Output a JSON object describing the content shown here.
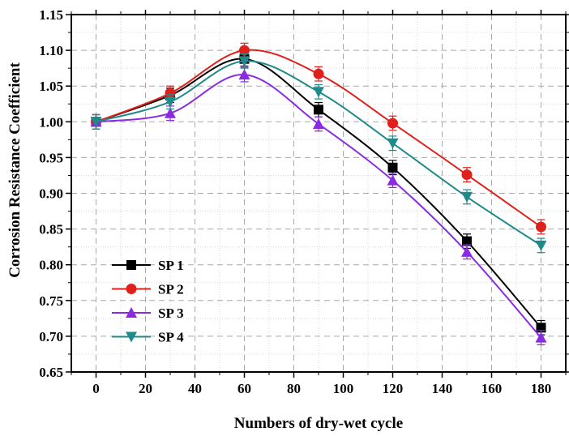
{
  "chart_data": {
    "type": "line",
    "title": "",
    "xlabel": "Numbers of dry-wet cycle",
    "ylabel": "Corrosion Resistance Coefficient",
    "xlim": [
      -10,
      190
    ],
    "ylim": [
      0.65,
      1.15
    ],
    "x": [
      0,
      30,
      60,
      90,
      120,
      150,
      180
    ],
    "x_ticks": [
      0,
      20,
      40,
      60,
      80,
      100,
      120,
      140,
      160,
      180
    ],
    "x_tick_labels": [
      "0",
      "20",
      "40",
      "60",
      "80",
      "100",
      "120",
      "140",
      "160",
      "180"
    ],
    "y_ticks": [
      0.65,
      0.7,
      0.75,
      0.8,
      0.85,
      0.9,
      0.95,
      1.0,
      1.05,
      1.1,
      1.15
    ],
    "y_tick_labels": [
      "0.65",
      "0.70",
      "0.75",
      "0.80",
      "0.85",
      "0.90",
      "0.95",
      "1.00",
      "1.05",
      "1.10",
      "1.15"
    ],
    "grid": true,
    "smooth": true,
    "error_bar": 0.01,
    "legend_position": "bottom-left",
    "series": [
      {
        "name": "SP 1",
        "marker": "square",
        "color": "#000000",
        "values": [
          1.0,
          1.037,
          1.088,
          1.017,
          0.936,
          0.833,
          0.712
        ]
      },
      {
        "name": "SP 2",
        "marker": "circle",
        "color": "#e0201b",
        "values": [
          1.0,
          1.04,
          1.1,
          1.067,
          0.998,
          0.926,
          0.853
        ]
      },
      {
        "name": "SP 3",
        "marker": "triangle-up",
        "color": "#8a2be2",
        "values": [
          1.0,
          1.012,
          1.066,
          0.997,
          0.918,
          0.818,
          0.698
        ]
      },
      {
        "name": "SP 4",
        "marker": "triangle-down",
        "color": "#1f8a8a",
        "values": [
          1.0,
          1.028,
          1.085,
          1.042,
          0.97,
          0.895,
          0.827
        ]
      }
    ]
  }
}
